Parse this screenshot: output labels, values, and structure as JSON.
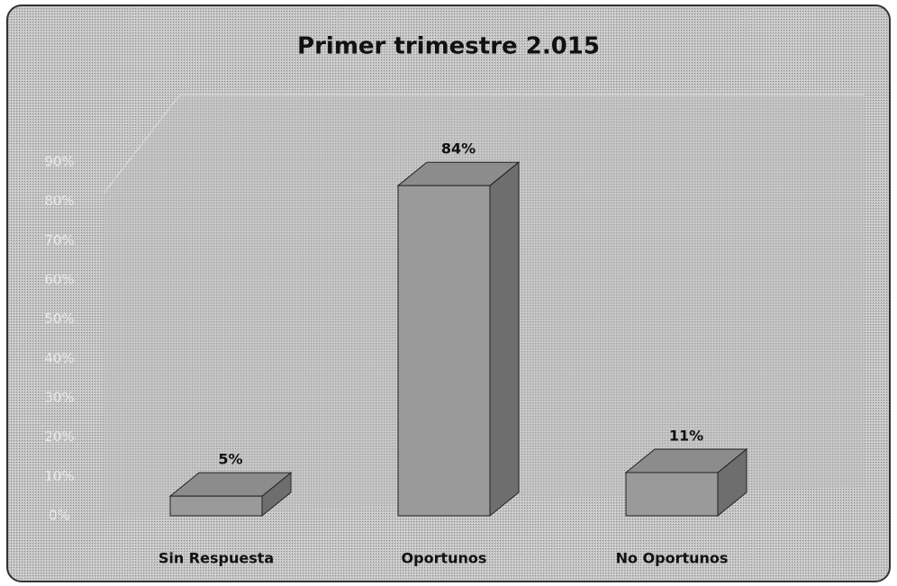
{
  "chart_data": {
    "type": "bar3d",
    "title": "Primer trimestre 2.015",
    "categories": [
      "Sin Respuesta",
      "Oportunos",
      "No Oportunos"
    ],
    "values": [
      5,
      84,
      11
    ],
    "value_labels": [
      "5%",
      "84%",
      "11%"
    ],
    "color": "#9a9a9a",
    "ylim": [
      0,
      90
    ],
    "yticks": [
      {
        "value": 0,
        "label": "0%"
      },
      {
        "value": 10,
        "label": "10%"
      },
      {
        "value": 20,
        "label": "20%"
      },
      {
        "value": 30,
        "label": "30%"
      },
      {
        "value": 40,
        "label": "40%"
      },
      {
        "value": 50,
        "label": "50%"
      },
      {
        "value": 60,
        "label": "60%"
      },
      {
        "value": 70,
        "label": "70%"
      },
      {
        "value": 80,
        "label": "80%"
      },
      {
        "value": 90,
        "label": "90%"
      }
    ],
    "grid": false
  }
}
